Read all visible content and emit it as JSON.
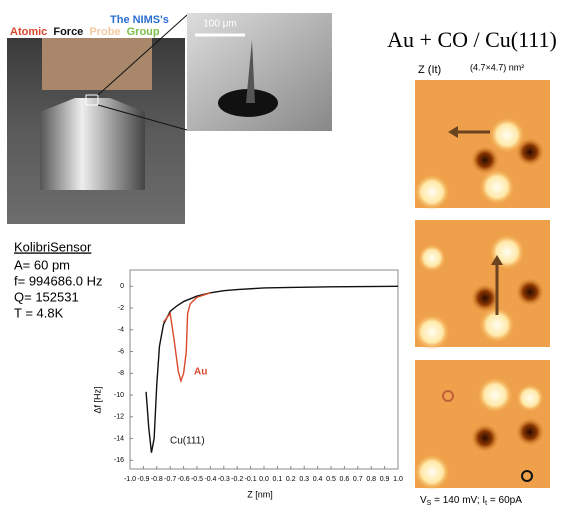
{
  "header": {
    "nims": "The NIMS's",
    "atomic": "Atomic",
    "force": "Force",
    "probe": "Probe",
    "group": "Group"
  },
  "sem_scale": "100 μm",
  "stm": {
    "title": "Au + CO / Cu(111)",
    "mode": "Z (It)",
    "size": "(4.7×4.7) nm²",
    "params": [
      "V",
      "S",
      " = 140 mV; I",
      "t",
      " = 60pA"
    ]
  },
  "sensor": {
    "name": "KolibriSensor",
    "lines": [
      "A= 60 pm",
      "f= 994686.0 Hz",
      "Q= 152531",
      "T = 4.8K"
    ]
  },
  "chart_data": {
    "type": "line",
    "x_label": "Z [nm]",
    "y_label": "Δf [Hz]",
    "xlim": [
      -1,
      1
    ],
    "ylim": [
      -16.8,
      1.5
    ],
    "xticks": [
      {
        "value": -1,
        "label": "-1.0"
      },
      {
        "value": -0.9,
        "label": "-0.9"
      },
      {
        "value": -0.8,
        "label": "-0.8"
      },
      {
        "value": -0.7,
        "label": "-0.7"
      },
      {
        "value": -0.6,
        "label": "-0.6"
      },
      {
        "value": -0.5,
        "label": "-0.5"
      },
      {
        "value": -0.4,
        "label": "-0.4"
      },
      {
        "value": -0.3,
        "label": "-0.3"
      },
      {
        "value": -0.2,
        "label": "-0.2"
      },
      {
        "value": -0.1,
        "label": "-0.1"
      },
      {
        "value": 0,
        "label": "0.0"
      },
      0.1,
      0.2,
      0.3,
      0.4,
      0.5,
      0.6,
      0.7,
      0.8,
      0.9,
      {
        "value": 1,
        "label": "1.0"
      }
    ],
    "yticks": [
      0,
      -2,
      -4,
      -6,
      -8,
      -10,
      -12,
      -14,
      -16
    ],
    "series": [
      {
        "name": "Cu(111)",
        "color": "#111111",
        "x": [
          -0.88,
          -0.86,
          -0.84,
          -0.82,
          -0.8,
          -0.78,
          -0.75,
          -0.7,
          -0.65,
          -0.6,
          -0.5,
          -0.4,
          -0.3,
          -0.2,
          0,
          0.2,
          0.5,
          1.0
        ],
        "values": [
          -9.7,
          -13,
          -15.3,
          -14,
          -9,
          -5.5,
          -3.5,
          -2.3,
          -1.8,
          -1.4,
          -0.9,
          -0.6,
          -0.4,
          -0.3,
          -0.15,
          -0.1,
          -0.05,
          0
        ]
      },
      {
        "name": "Au",
        "color": "#d9482b",
        "x": [
          -0.75,
          -0.7,
          -0.67,
          -0.64,
          -0.62,
          -0.6,
          -0.58,
          -0.57,
          -0.55,
          -0.5,
          -0.4
        ],
        "values": [
          -3.3,
          -2.5,
          -5,
          -7.8,
          -8.7,
          -8,
          -6,
          -2.5,
          -1.6,
          -1.0,
          -0.6
        ]
      }
    ]
  }
}
